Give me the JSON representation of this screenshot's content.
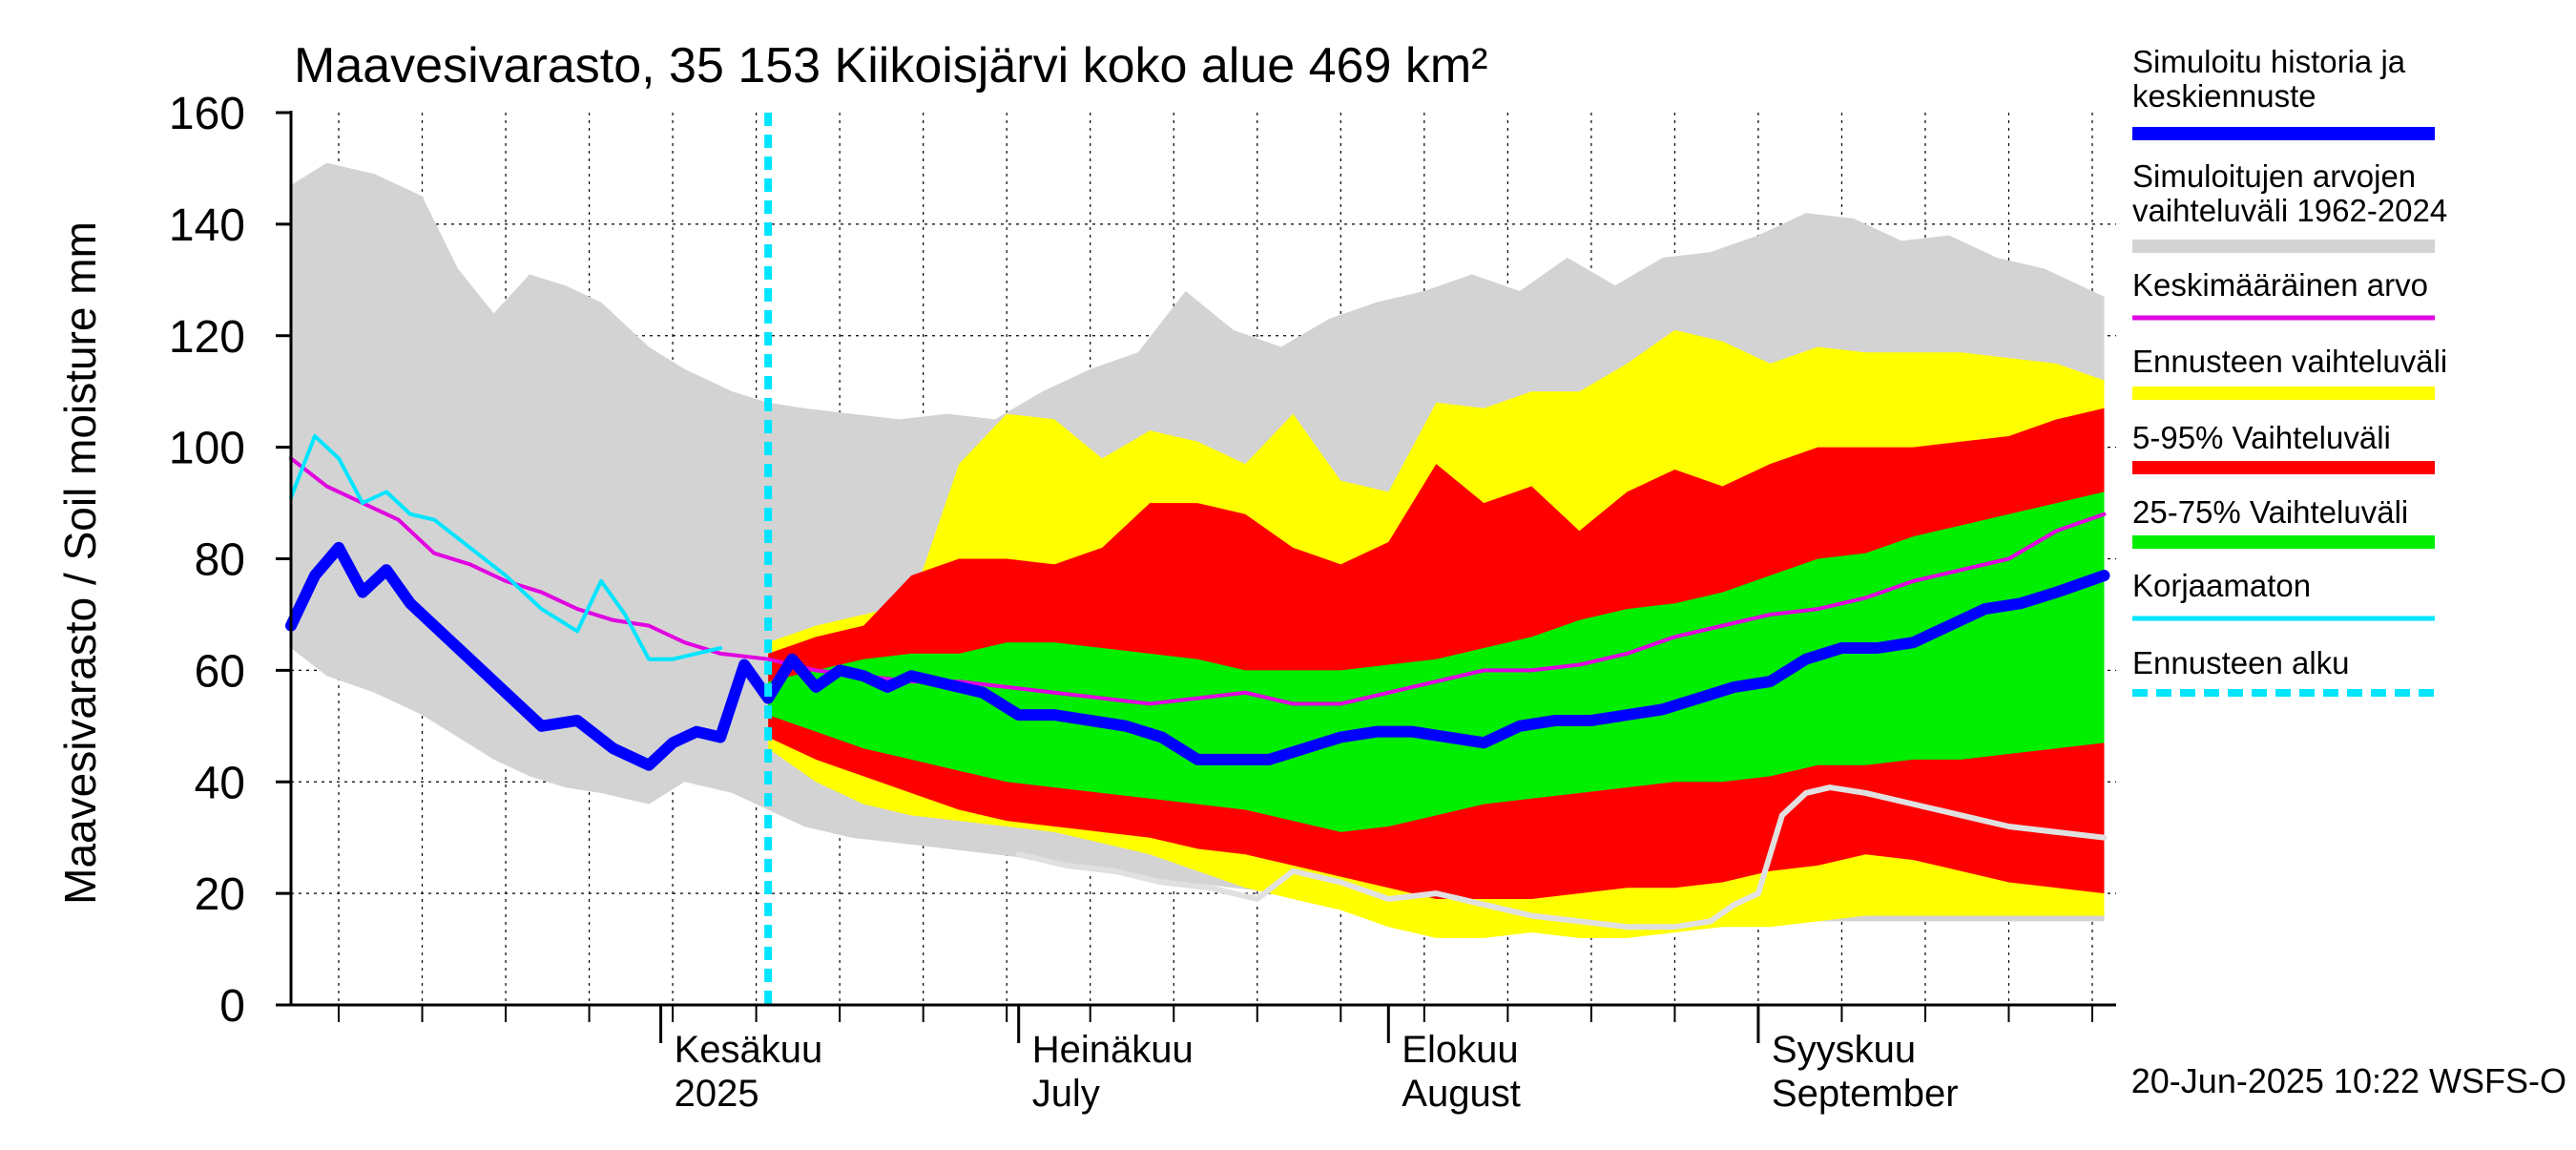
{
  "chart_data": {
    "type": "area",
    "title": "Maavesivarasto, 35 153 Kiikoisjärvi koko alue 469 km²",
    "ylabel": "Maavesivarasto / Soil moisture   mm",
    "ylim": [
      0,
      160
    ],
    "yticks": [
      0,
      20,
      40,
      60,
      80,
      100,
      120,
      140,
      160
    ],
    "x_start": "2025-05-01",
    "x_end": "2025-09-30",
    "forecast_start": "2025-06-10",
    "month_labels": [
      {
        "date": "2025-06-01",
        "line1": "Kesäkuu",
        "line2": "2025"
      },
      {
        "date": "2025-07-01",
        "line1": "Heinäkuu",
        "line2": "July"
      },
      {
        "date": "2025-08-01",
        "line1": "Elokuu",
        "line2": "August"
      },
      {
        "date": "2025-09-01",
        "line1": "Syyskuu",
        "line2": "September"
      }
    ],
    "timestamp": "20-Jun-2025 10:22 WSFS-O",
    "grid": true,
    "legend_position": "right",
    "colors": {
      "history_band": "#d3d3d3",
      "forecast_range": "#ffff00",
      "band_5_95": "#ff0000",
      "band_25_75": "#00ee00",
      "simulated": "#0000ff",
      "mean": "#e000e0",
      "uncorrected": "#00e5ff",
      "forecast_start": "#00e5ff",
      "min_history_line": "#e0e0e0"
    },
    "legend": [
      {
        "label": "Simuloitu historia ja keskiennuste",
        "color": "#0000ff",
        "style": "thick"
      },
      {
        "label": "Simuloitujen arvojen vaihteluväli 1962-2024",
        "color": "#d3d3d3",
        "style": "thick"
      },
      {
        "label": "Keskimääräinen arvo",
        "color": "#e000e0",
        "style": "thin"
      },
      {
        "label": "Ennusteen vaihteluväli",
        "color": "#ffff00",
        "style": "thick"
      },
      {
        "label": "5-95% Vaihteluväli",
        "color": "#ff0000",
        "style": "thick"
      },
      {
        "label": "25-75% Vaihteluväli",
        "color": "#00ee00",
        "style": "thick"
      },
      {
        "label": "Korjaamaton",
        "color": "#00e5ff",
        "style": "thin"
      },
      {
        "label": "Ennusteen alku",
        "color": "#00e5ff",
        "style": "dashed"
      }
    ],
    "series": {
      "history_band": {
        "x": [
          "2025-05-01",
          "2025-05-04",
          "2025-05-08",
          "2025-05-12",
          "2025-05-15",
          "2025-05-18",
          "2025-05-21",
          "2025-05-24",
          "2025-05-27",
          "2025-05-31",
          "2025-06-03",
          "2025-06-07",
          "2025-06-10",
          "2025-06-13",
          "2025-06-17",
          "2025-06-21",
          "2025-06-25",
          "2025-06-29",
          "2025-07-03",
          "2025-07-07",
          "2025-07-11",
          "2025-07-15",
          "2025-07-19",
          "2025-07-23",
          "2025-07-27",
          "2025-07-31",
          "2025-08-04",
          "2025-08-08",
          "2025-08-12",
          "2025-08-16",
          "2025-08-20",
          "2025-08-24",
          "2025-08-28",
          "2025-09-01",
          "2025-09-05",
          "2025-09-09",
          "2025-09-13",
          "2025-09-17",
          "2025-09-21",
          "2025-09-25",
          "2025-09-30"
        ],
        "upper": [
          147,
          151,
          149,
          145,
          132,
          124,
          131,
          129,
          126,
          118,
          114,
          110,
          108,
          107,
          106,
          105,
          106,
          105,
          110,
          114,
          117,
          128,
          121,
          118,
          123,
          126,
          128,
          131,
          128,
          134,
          129,
          134,
          135,
          138,
          142,
          141,
          137,
          138,
          134,
          132,
          127
        ],
        "lower": [
          64,
          59,
          56,
          52,
          48,
          44,
          41,
          39,
          38,
          36,
          40,
          38,
          35,
          32,
          30,
          29,
          28,
          27,
          26,
          24,
          23,
          22,
          21,
          20,
          19,
          18,
          18,
          17,
          16,
          16,
          15,
          15,
          15,
          15,
          15,
          15,
          15,
          15,
          15,
          15,
          15
        ]
      },
      "forecast_range": {
        "x": [
          "2025-06-10",
          "2025-06-14",
          "2025-06-18",
          "2025-06-22",
          "2025-06-26",
          "2025-06-30",
          "2025-07-04",
          "2025-07-08",
          "2025-07-12",
          "2025-07-16",
          "2025-07-20",
          "2025-07-24",
          "2025-07-28",
          "2025-08-01",
          "2025-08-05",
          "2025-08-09",
          "2025-08-13",
          "2025-08-17",
          "2025-08-21",
          "2025-08-25",
          "2025-08-29",
          "2025-09-02",
          "2025-09-06",
          "2025-09-10",
          "2025-09-14",
          "2025-09-18",
          "2025-09-22",
          "2025-09-26",
          "2025-09-30"
        ],
        "upper": [
          65,
          68,
          70,
          72,
          97,
          106,
          105,
          98,
          103,
          101,
          97,
          106,
          94,
          92,
          108,
          107,
          110,
          110,
          115,
          121,
          119,
          115,
          118,
          117,
          117,
          117,
          116,
          115,
          112
        ],
        "lower": [
          46,
          40,
          36,
          34,
          33,
          32,
          31,
          29,
          27,
          24,
          21,
          19,
          17,
          14,
          12,
          12,
          13,
          12,
          12,
          13,
          14,
          14,
          15,
          16,
          16,
          16,
          16,
          16,
          16
        ]
      },
      "band_5_95": {
        "x": [
          "2025-06-10",
          "2025-06-14",
          "2025-06-18",
          "2025-06-22",
          "2025-06-26",
          "2025-06-30",
          "2025-07-04",
          "2025-07-08",
          "2025-07-12",
          "2025-07-16",
          "2025-07-20",
          "2025-07-24",
          "2025-07-28",
          "2025-08-01",
          "2025-08-05",
          "2025-08-09",
          "2025-08-13",
          "2025-08-17",
          "2025-08-21",
          "2025-08-25",
          "2025-08-29",
          "2025-09-02",
          "2025-09-06",
          "2025-09-10",
          "2025-09-14",
          "2025-09-18",
          "2025-09-22",
          "2025-09-26",
          "2025-09-30"
        ],
        "upper": [
          63,
          66,
          68,
          77,
          80,
          80,
          79,
          82,
          90,
          90,
          88,
          82,
          79,
          83,
          97,
          90,
          93,
          85,
          92,
          96,
          93,
          97,
          100,
          100,
          100,
          101,
          102,
          105,
          107
        ],
        "lower": [
          48,
          44,
          41,
          38,
          35,
          33,
          32,
          31,
          30,
          28,
          27,
          25,
          23,
          21,
          19,
          19,
          19,
          20,
          21,
          21,
          22,
          24,
          25,
          27,
          26,
          24,
          22,
          21,
          20
        ]
      },
      "band_25_75": {
        "x": [
          "2025-06-10",
          "2025-06-14",
          "2025-06-18",
          "2025-06-22",
          "2025-06-26",
          "2025-06-30",
          "2025-07-04",
          "2025-07-08",
          "2025-07-12",
          "2025-07-16",
          "2025-07-20",
          "2025-07-24",
          "2025-07-28",
          "2025-08-01",
          "2025-08-05",
          "2025-08-09",
          "2025-08-13",
          "2025-08-17",
          "2025-08-21",
          "2025-08-25",
          "2025-08-29",
          "2025-09-02",
          "2025-09-06",
          "2025-09-10",
          "2025-09-14",
          "2025-09-18",
          "2025-09-22",
          "2025-09-26",
          "2025-09-30"
        ],
        "upper": [
          58,
          60,
          62,
          63,
          63,
          65,
          65,
          64,
          63,
          62,
          60,
          60,
          60,
          61,
          62,
          64,
          66,
          69,
          71,
          72,
          74,
          77,
          80,
          81,
          84,
          86,
          88,
          90,
          92
        ],
        "lower": [
          52,
          49,
          46,
          44,
          42,
          40,
          39,
          38,
          37,
          36,
          35,
          33,
          31,
          32,
          34,
          36,
          37,
          38,
          39,
          40,
          40,
          41,
          43,
          43,
          44,
          44,
          45,
          46,
          47
        ]
      },
      "simulated": {
        "x": [
          "2025-05-01",
          "2025-05-03",
          "2025-05-05",
          "2025-05-07",
          "2025-05-09",
          "2025-05-11",
          "2025-05-13",
          "2025-05-16",
          "2025-05-19",
          "2025-05-22",
          "2025-05-25",
          "2025-05-28",
          "2025-05-31",
          "2025-06-02",
          "2025-06-04",
          "2025-06-06",
          "2025-06-08",
          "2025-06-10",
          "2025-06-12",
          "2025-06-14",
          "2025-06-16",
          "2025-06-18",
          "2025-06-20",
          "2025-06-22",
          "2025-06-24",
          "2025-06-26",
          "2025-06-28",
          "2025-07-01",
          "2025-07-04",
          "2025-07-07",
          "2025-07-10",
          "2025-07-13",
          "2025-07-16",
          "2025-07-19",
          "2025-07-22",
          "2025-07-25",
          "2025-07-28",
          "2025-07-31",
          "2025-08-03",
          "2025-08-06",
          "2025-08-09",
          "2025-08-12",
          "2025-08-15",
          "2025-08-18",
          "2025-08-21",
          "2025-08-24",
          "2025-08-27",
          "2025-08-30",
          "2025-09-02",
          "2025-09-05",
          "2025-09-08",
          "2025-09-11",
          "2025-09-14",
          "2025-09-17",
          "2025-09-20",
          "2025-09-23",
          "2025-09-26",
          "2025-09-30"
        ],
        "values": [
          68,
          77,
          82,
          74,
          78,
          72,
          68,
          62,
          56,
          50,
          51,
          46,
          43,
          47,
          49,
          48,
          61,
          55,
          62,
          57,
          60,
          59,
          57,
          59,
          58,
          57,
          56,
          52,
          52,
          51,
          50,
          48,
          44,
          44,
          44,
          46,
          48,
          49,
          49,
          48,
          47,
          50,
          51,
          51,
          52,
          53,
          55,
          57,
          58,
          62,
          64,
          64,
          65,
          68,
          71,
          72,
          74,
          77
        ]
      },
      "mean": {
        "x": [
          "2025-05-01",
          "2025-05-04",
          "2025-05-07",
          "2025-05-10",
          "2025-05-13",
          "2025-05-16",
          "2025-05-19",
          "2025-05-22",
          "2025-05-25",
          "2025-05-28",
          "2025-05-31",
          "2025-06-03",
          "2025-06-06",
          "2025-06-10",
          "2025-06-14",
          "2025-06-18",
          "2025-06-22",
          "2025-06-26",
          "2025-06-30",
          "2025-07-04",
          "2025-07-08",
          "2025-07-12",
          "2025-07-16",
          "2025-07-20",
          "2025-07-24",
          "2025-07-28",
          "2025-08-01",
          "2025-08-05",
          "2025-08-09",
          "2025-08-13",
          "2025-08-17",
          "2025-08-21",
          "2025-08-25",
          "2025-08-29",
          "2025-09-02",
          "2025-09-06",
          "2025-09-10",
          "2025-09-14",
          "2025-09-18",
          "2025-09-22",
          "2025-09-26",
          "2025-09-30"
        ],
        "values": [
          98,
          93,
          90,
          87,
          81,
          79,
          76,
          74,
          71,
          69,
          68,
          65,
          63,
          62,
          60,
          59,
          58,
          58,
          57,
          56,
          55,
          54,
          55,
          56,
          54,
          54,
          56,
          58,
          60,
          60,
          61,
          63,
          66,
          68,
          70,
          71,
          73,
          76,
          78,
          80,
          85,
          88
        ]
      },
      "uncorrected": {
        "x": [
          "2025-05-01",
          "2025-05-03",
          "2025-05-05",
          "2025-05-07",
          "2025-05-09",
          "2025-05-11",
          "2025-05-13",
          "2025-05-16",
          "2025-05-19",
          "2025-05-22",
          "2025-05-25",
          "2025-05-27",
          "2025-05-29",
          "2025-05-31",
          "2025-06-02",
          "2025-06-04",
          "2025-06-06"
        ],
        "values": [
          91,
          102,
          98,
          90,
          92,
          88,
          87,
          82,
          77,
          71,
          67,
          76,
          70,
          62,
          62,
          63,
          64
        ]
      },
      "min_history_line": {
        "x": [
          "2025-07-01",
          "2025-07-05",
          "2025-07-09",
          "2025-07-13",
          "2025-07-17",
          "2025-07-21",
          "2025-07-24",
          "2025-07-28",
          "2025-08-01",
          "2025-08-05",
          "2025-08-09",
          "2025-08-13",
          "2025-08-17",
          "2025-08-21",
          "2025-08-25",
          "2025-08-28",
          "2025-08-30",
          "2025-09-01",
          "2025-09-03",
          "2025-09-05",
          "2025-09-07",
          "2025-09-10",
          "2025-09-14",
          "2025-09-18",
          "2025-09-22",
          "2025-09-26",
          "2025-09-30"
        ],
        "values": [
          27,
          25,
          24,
          22,
          21,
          19,
          24,
          22,
          19,
          20,
          18,
          16,
          15,
          14,
          14,
          15,
          18,
          20,
          34,
          38,
          39,
          38,
          36,
          34,
          32,
          31,
          30
        ]
      }
    }
  }
}
